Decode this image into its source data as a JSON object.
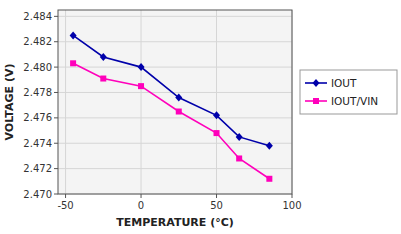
{
  "chart_data": {
    "type": "line",
    "xlabel": "TEMPERATURE (°C)",
    "ylabel": "VOLTAGE (V)",
    "x": [
      -45,
      -25,
      0,
      25,
      50,
      65,
      85
    ],
    "series": [
      {
        "name": "IOUT",
        "color": "#0000AA",
        "marker": "diamond",
        "values": [
          2.4825,
          2.4808,
          2.48,
          2.4776,
          2.4762,
          2.4745,
          2.4738
        ]
      },
      {
        "name": "IOUT/VIN",
        "color": "#FF00BB",
        "marker": "square",
        "values": [
          2.4803,
          2.4791,
          2.4785,
          2.4765,
          2.4748,
          2.4728,
          2.4712
        ]
      }
    ],
    "xlim": [
      -55,
      100
    ],
    "ylim": [
      2.47,
      2.4845
    ],
    "xticks": [
      -50,
      0,
      50,
      100
    ],
    "yticks": [
      {
        "value": 2.47,
        "label": "2.470"
      },
      2.472,
      2.474,
      2.476,
      2.478,
      {
        "value": 2.48,
        "label": "2.480"
      },
      2.482,
      2.484
    ],
    "grid": true,
    "legend": "right"
  }
}
